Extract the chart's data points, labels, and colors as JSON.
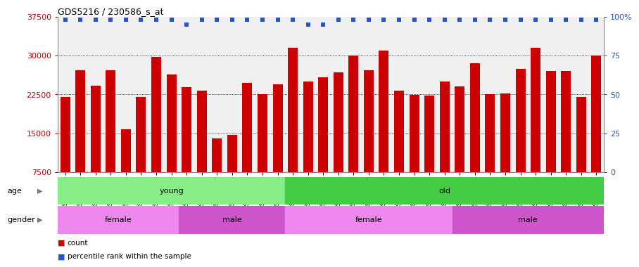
{
  "title": "GDS5216 / 230586_s_at",
  "samples": [
    "GSM637513",
    "GSM637514",
    "GSM637515",
    "GSM637516",
    "GSM637517",
    "GSM637518",
    "GSM637519",
    "GSM637520",
    "GSM637532",
    "GSM637533",
    "GSM637534",
    "GSM637535",
    "GSM637536",
    "GSM637537",
    "GSM637538",
    "GSM637521",
    "GSM637522",
    "GSM637523",
    "GSM637524",
    "GSM637525",
    "GSM637526",
    "GSM637527",
    "GSM637528",
    "GSM637529",
    "GSM637530",
    "GSM637531",
    "GSM637539",
    "GSM637540",
    "GSM637541",
    "GSM637542",
    "GSM637543",
    "GSM637544",
    "GSM637545",
    "GSM637546",
    "GSM637547",
    "GSM637548"
  ],
  "counts": [
    22000,
    27200,
    24200,
    27200,
    15800,
    22000,
    29700,
    26300,
    23900,
    23200,
    14000,
    14700,
    24700,
    22600,
    24500,
    31500,
    25000,
    25800,
    26700,
    30000,
    27200,
    31000,
    23300,
    22400,
    22300,
    25000,
    24000,
    28500,
    22500,
    22700,
    27500,
    31500,
    27000,
    27000,
    22000,
    30000
  ],
  "percentile": [
    98,
    98,
    98,
    98,
    98,
    98,
    98,
    98,
    95,
    98,
    98,
    98,
    98,
    98,
    98,
    98,
    95,
    95,
    98,
    98,
    98,
    98,
    98,
    98,
    98,
    98,
    98,
    98,
    98,
    98,
    98,
    98,
    98,
    98,
    98,
    98
  ],
  "bar_color": "#cc0000",
  "dot_color": "#2255cc",
  "ylim_left": [
    7500,
    37500
  ],
  "ylim_right": [
    0,
    100
  ],
  "yticks_left": [
    7500,
    15000,
    22500,
    30000,
    37500
  ],
  "yticks_right": [
    0,
    25,
    50,
    75,
    100
  ],
  "ytick_right_labels": [
    "0",
    "25",
    "50",
    "75",
    "100%"
  ],
  "gridlines": [
    15000,
    22500,
    30000
  ],
  "age_groups": [
    {
      "label": "young",
      "start": 0,
      "end": 15,
      "color": "#88ee88"
    },
    {
      "label": "old",
      "start": 15,
      "end": 36,
      "color": "#44cc44"
    }
  ],
  "gender_groups": [
    {
      "label": "female",
      "start": 0,
      "end": 8,
      "color": "#ee88ee"
    },
    {
      "label": "male",
      "start": 8,
      "end": 15,
      "color": "#cc55cc"
    },
    {
      "label": "female",
      "start": 15,
      "end": 26,
      "color": "#ee88ee"
    },
    {
      "label": "male",
      "start": 26,
      "end": 36,
      "color": "#cc55cc"
    }
  ],
  "plot_bg_color": "#f0f0f0",
  "bg_color": "#ffffff"
}
